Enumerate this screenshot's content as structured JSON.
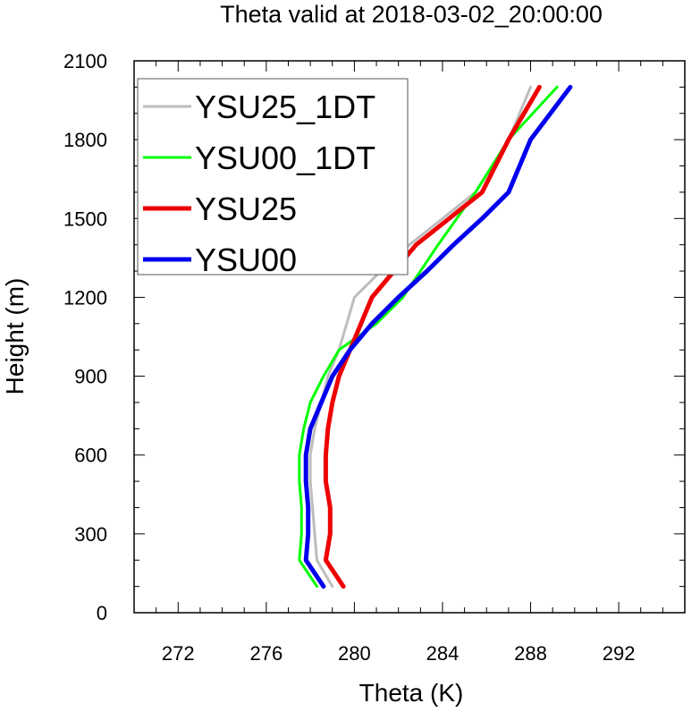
{
  "chart_data": {
    "type": "line",
    "title": "Theta valid at 2018-03-02_20:00:00",
    "xlabel": "Theta (K)",
    "ylabel": "Height (m)",
    "xlim": [
      270,
      295
    ],
    "ylim": [
      0,
      2100
    ],
    "xticks": [
      "272",
      "276",
      "280",
      "284",
      "288",
      "292"
    ],
    "yticks": [
      "0",
      "300",
      "600",
      "900",
      "1200",
      "1500",
      "1800",
      "2100"
    ],
    "legend_position": "top-left",
    "series": [
      {
        "name": "YSU25_1DT",
        "color": "#bdbdbd",
        "width": "thin",
        "points": [
          [
            279.0,
            100
          ],
          [
            278.3,
            200
          ],
          [
            278.2,
            300
          ],
          [
            278.1,
            400
          ],
          [
            278.0,
            500
          ],
          [
            278.0,
            600
          ],
          [
            278.2,
            700
          ],
          [
            278.5,
            800
          ],
          [
            278.8,
            900
          ],
          [
            279.3,
            1000
          ],
          [
            280.0,
            1200
          ],
          [
            281.2,
            1300
          ],
          [
            282.5,
            1400
          ],
          [
            284.0,
            1500
          ],
          [
            285.5,
            1600
          ],
          [
            287.0,
            1800
          ],
          [
            288.0,
            2000
          ]
        ]
      },
      {
        "name": "YSU00_1DT",
        "color": "#00ff00",
        "width": "thin",
        "points": [
          [
            278.3,
            100
          ],
          [
            277.5,
            200
          ],
          [
            277.6,
            300
          ],
          [
            277.6,
            400
          ],
          [
            277.5,
            500
          ],
          [
            277.5,
            600
          ],
          [
            277.7,
            700
          ],
          [
            278.0,
            800
          ],
          [
            278.6,
            900
          ],
          [
            279.3,
            1000
          ],
          [
            281.0,
            1100
          ],
          [
            282.2,
            1200
          ],
          [
            283.8,
            1400
          ],
          [
            285.5,
            1600
          ],
          [
            287.0,
            1800
          ],
          [
            289.2,
            2000
          ]
        ]
      },
      {
        "name": "YSU25",
        "color": "#ee0000",
        "width": "thick",
        "points": [
          [
            279.5,
            100
          ],
          [
            278.7,
            200
          ],
          [
            278.9,
            300
          ],
          [
            278.9,
            400
          ],
          [
            278.7,
            500
          ],
          [
            278.7,
            600
          ],
          [
            278.8,
            700
          ],
          [
            279.0,
            800
          ],
          [
            279.3,
            900
          ],
          [
            279.8,
            1000
          ],
          [
            280.3,
            1100
          ],
          [
            280.8,
            1200
          ],
          [
            281.8,
            1300
          ],
          [
            282.8,
            1400
          ],
          [
            284.3,
            1500
          ],
          [
            285.8,
            1600
          ],
          [
            287.0,
            1800
          ],
          [
            288.4,
            2000
          ]
        ]
      },
      {
        "name": "YSU00",
        "color": "#0000ee",
        "width": "thick",
        "points": [
          [
            278.6,
            100
          ],
          [
            277.8,
            200
          ],
          [
            277.9,
            300
          ],
          [
            277.9,
            400
          ],
          [
            277.8,
            500
          ],
          [
            277.8,
            600
          ],
          [
            278.0,
            700
          ],
          [
            278.5,
            800
          ],
          [
            279.0,
            900
          ],
          [
            279.8,
            1000
          ],
          [
            280.8,
            1100
          ],
          [
            282.0,
            1200
          ],
          [
            283.3,
            1300
          ],
          [
            284.5,
            1400
          ],
          [
            285.8,
            1500
          ],
          [
            287.0,
            1600
          ],
          [
            288.0,
            1800
          ],
          [
            289.8,
            2000
          ]
        ]
      }
    ]
  }
}
